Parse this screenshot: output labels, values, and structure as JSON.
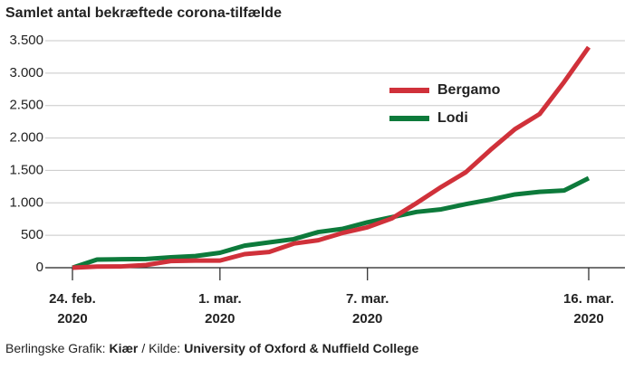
{
  "chart_data": {
    "type": "line",
    "title": "Samlet antal bekræftede corona-tilfælde",
    "source_parts": [
      "Berlingske Grafik:",
      "Kiær",
      "/ Kilde:",
      "University of Oxford & Nuffield College"
    ],
    "x": [
      "2020-02-24",
      "2020-02-25",
      "2020-02-26",
      "2020-02-27",
      "2020-02-28",
      "2020-02-29",
      "2020-03-01",
      "2020-03-02",
      "2020-03-03",
      "2020-03-04",
      "2020-03-05",
      "2020-03-06",
      "2020-03-07",
      "2020-03-08",
      "2020-03-09",
      "2020-03-10",
      "2020-03-11",
      "2020-03-12",
      "2020-03-13",
      "2020-03-14",
      "2020-03-15",
      "2020-03-16"
    ],
    "series": [
      {
        "name": "Bergamo",
        "color": "#d0313a",
        "values": [
          0,
          18,
          20,
          42,
          103,
          110,
          110,
          209,
          243,
          372,
          423,
          537,
          623,
          761,
          997,
          1245,
          1472,
          1815,
          2136,
          2368,
          2864,
          3400
        ]
      },
      {
        "name": "Lodi",
        "color": "#0d7a3b",
        "values": [
          0,
          125,
          130,
          135,
          160,
          180,
          230,
          340,
          390,
          440,
          550,
          600,
          700,
          780,
          860,
          900,
          980,
          1050,
          1130,
          1170,
          1190,
          1380
        ]
      }
    ],
    "xlim": [
      "2020-02-24",
      "2020-03-16"
    ],
    "xticks": [
      {
        "value": "2020-02-24",
        "label": "24. feb.\n2020"
      },
      {
        "value": "2020-03-01",
        "label": "1. mar.\n2020"
      },
      {
        "value": "2020-03-07",
        "label": "7. mar.\n2020"
      },
      {
        "value": "2020-03-16",
        "label": "16. mar.\n2020"
      }
    ],
    "ylim": [
      0,
      3500
    ],
    "yticks": [
      0,
      500,
      {
        "value": 1000,
        "label": "1.000"
      },
      {
        "value": 1500,
        "label": "1.500"
      },
      {
        "value": 2000,
        "label": "2.000"
      },
      {
        "value": 2500,
        "label": "2.500"
      },
      {
        "value": 3000,
        "label": "3.000"
      },
      {
        "value": 3500,
        "label": "3.500"
      }
    ],
    "grid": true
  }
}
